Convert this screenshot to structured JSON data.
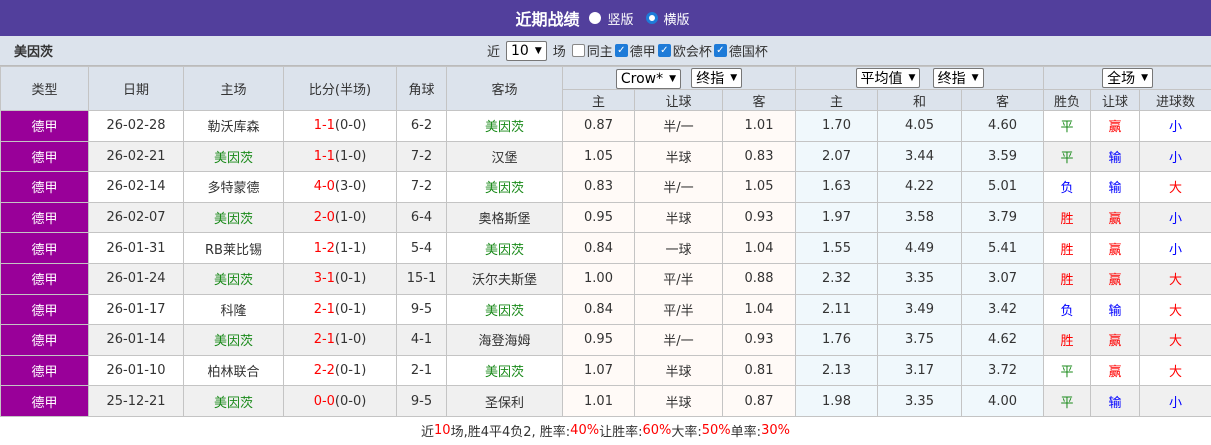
{
  "header": {
    "title": "近期战绩",
    "view_options": [
      {
        "label": "竖版",
        "selected": false
      },
      {
        "label": "横版",
        "selected": true
      }
    ]
  },
  "filter": {
    "team": "美因茨",
    "prefix": "近",
    "count": "10",
    "suffix": "场",
    "checks": [
      {
        "label": "同主",
        "checked": false
      },
      {
        "label": "德甲",
        "checked": true
      },
      {
        "label": "欧会杯",
        "checked": true
      },
      {
        "label": "德国杯",
        "checked": true
      }
    ]
  },
  "columns": {
    "type": "类型",
    "date": "日期",
    "home": "主场",
    "score": "比分(半场)",
    "corner": "角球",
    "away": "客场",
    "company1": "Crow*",
    "odds1": "终指",
    "company2": "平均值",
    "odds2": "终指",
    "scope": "全场",
    "ah_home": "主",
    "ah_line": "让球",
    "ah_away": "客",
    "eu_home": "主",
    "eu_draw": "和",
    "eu_away": "客",
    "res": "胜负",
    "ah_res": "让球",
    "ou_res": "进球数"
  },
  "colors": {
    "league": "#990099",
    "team_highlight": "#1a8a1a",
    "score": "#ff0000",
    "header": "#523f9c"
  },
  "rows": [
    {
      "type": "德甲",
      "date": "26-02-28",
      "home": "勒沃库森",
      "hh": false,
      "ft": "1-1",
      "ht": "(0-0)",
      "corner": "6-2",
      "away": "美因茨",
      "ah": [
        "0.87",
        "半/一",
        "1.01"
      ],
      "eu": [
        "1.70",
        "4.05",
        "4.60"
      ],
      "res": "平",
      "ahr": "赢",
      "ou": "小"
    },
    {
      "type": "德甲",
      "date": "26-02-21",
      "home": "美因茨",
      "hh": true,
      "ft": "1-1",
      "ht": "(1-0)",
      "corner": "7-2",
      "away": "汉堡",
      "ah": [
        "1.05",
        "半球",
        "0.83"
      ],
      "eu": [
        "2.07",
        "3.44",
        "3.59"
      ],
      "res": "平",
      "ahr": "输",
      "ou": "小"
    },
    {
      "type": "德甲",
      "date": "26-02-14",
      "home": "多特蒙德",
      "hh": false,
      "ft": "4-0",
      "ht": "(3-0)",
      "corner": "7-2",
      "away": "美因茨",
      "ah": [
        "0.83",
        "半/一",
        "1.05"
      ],
      "eu": [
        "1.63",
        "4.22",
        "5.01"
      ],
      "res": "负",
      "ahr": "输",
      "ou": "大"
    },
    {
      "type": "德甲",
      "date": "26-02-07",
      "home": "美因茨",
      "hh": true,
      "ft": "2-0",
      "ht": "(1-0)",
      "corner": "6-4",
      "away": "奥格斯堡",
      "ah": [
        "0.95",
        "半球",
        "0.93"
      ],
      "eu": [
        "1.97",
        "3.58",
        "3.79"
      ],
      "res": "胜",
      "ahr": "赢",
      "ou": "小"
    },
    {
      "type": "德甲",
      "date": "26-01-31",
      "home": "RB莱比锡",
      "hh": false,
      "ft": "1-2",
      "ht": "(1-1)",
      "corner": "5-4",
      "away": "美因茨",
      "ah": [
        "0.84",
        "一球",
        "1.04"
      ],
      "eu": [
        "1.55",
        "4.49",
        "5.41"
      ],
      "res": "胜",
      "ahr": "赢",
      "ou": "小"
    },
    {
      "type": "德甲",
      "date": "26-01-24",
      "home": "美因茨",
      "hh": true,
      "ft": "3-1",
      "ht": "(0-1)",
      "corner": "15-1",
      "away": "沃尔夫斯堡",
      "ah": [
        "1.00",
        "平/半",
        "0.88"
      ],
      "eu": [
        "2.32",
        "3.35",
        "3.07"
      ],
      "res": "胜",
      "ahr": "赢",
      "ou": "大"
    },
    {
      "type": "德甲",
      "date": "26-01-17",
      "home": "科隆",
      "hh": false,
      "ft": "2-1",
      "ht": "(0-1)",
      "corner": "9-5",
      "away": "美因茨",
      "ah": [
        "0.84",
        "平/半",
        "1.04"
      ],
      "eu": [
        "2.11",
        "3.49",
        "3.42"
      ],
      "res": "负",
      "ahr": "输",
      "ou": "大"
    },
    {
      "type": "德甲",
      "date": "26-01-14",
      "home": "美因茨",
      "hh": true,
      "ft": "2-1",
      "ht": "(1-0)",
      "corner": "4-1",
      "away": "海登海姆",
      "ah": [
        "0.95",
        "半/一",
        "0.93"
      ],
      "eu": [
        "1.76",
        "3.75",
        "4.62"
      ],
      "res": "胜",
      "ahr": "赢",
      "ou": "大"
    },
    {
      "type": "德甲",
      "date": "26-01-10",
      "home": "柏林联合",
      "hh": false,
      "ft": "2-2",
      "ht": "(0-1)",
      "corner": "2-1",
      "away": "美因茨",
      "ah": [
        "1.07",
        "半球",
        "0.81"
      ],
      "eu": [
        "2.13",
        "3.17",
        "3.72"
      ],
      "res": "平",
      "ahr": "赢",
      "ou": "大"
    },
    {
      "type": "德甲",
      "date": "25-12-21",
      "home": "美因茨",
      "hh": true,
      "ft": "0-0",
      "ht": "(0-0)",
      "corner": "9-5",
      "away": "圣保利",
      "ah": [
        "1.01",
        "半球",
        "0.87"
      ],
      "eu": [
        "1.98",
        "3.35",
        "4.00"
      ],
      "res": "平",
      "ahr": "输",
      "ou": "小"
    }
  ],
  "footer": {
    "p1": "近",
    "n": "10",
    "p2": "场,胜4平4负2, 胜率:",
    "win": "40%",
    "p3": " 让胜率:",
    "ahwin": "60%",
    "p4": " 大率:",
    "big": "50%",
    "p5": " 单率:",
    "odd": "30%"
  }
}
